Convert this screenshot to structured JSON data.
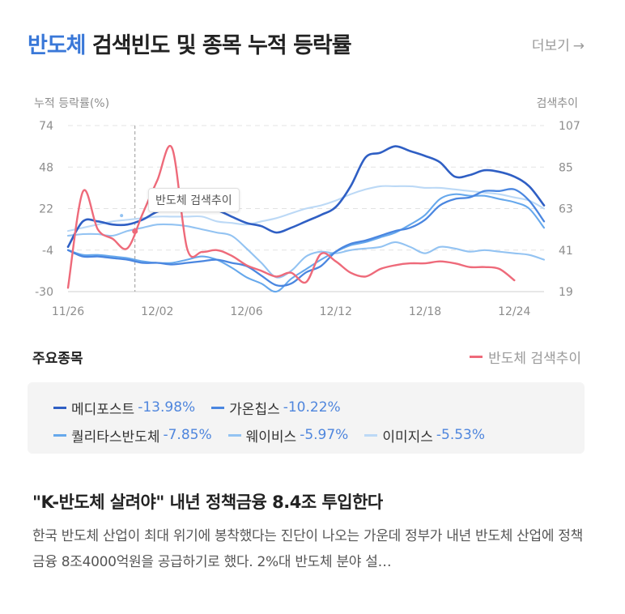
{
  "header": {
    "keyword": "반도체",
    "title_rest": " 검색빈도 및 종목 누적 등락률",
    "more_label": "더보기",
    "more_arrow": "→"
  },
  "tooltip": {
    "label": "반도체 검색추이"
  },
  "section": {
    "title": "주요종목",
    "search_legend": "반도체 검색추이"
  },
  "stocks": [
    {
      "name": "메디포스트",
      "change": "-13.98%",
      "color": "#2f5fc4"
    },
    {
      "name": "가온칩스",
      "change": "-10.22%",
      "color": "#4a86e0"
    },
    {
      "name": "퀄리타스반도체",
      "change": "-7.85%",
      "color": "#66a8ec"
    },
    {
      "name": "웨이비스",
      "change": "-5.97%",
      "color": "#93c3f2"
    },
    {
      "name": "이미지스",
      "change": "-5.53%",
      "color": "#bcd9f6"
    }
  ],
  "news": {
    "title": "\"K-반도체 살려야\" 내년 정책금융 8.4조 투입한다",
    "body": "한국 반도체 산업이 최대 위기에 봉착했다는 진단이 나오는 가운데 정부가 내년 반도체 산업에 정책금융 8조4000억원을 공급하기로 했다. 2%대 반도체 분야 설…"
  },
  "chart_data": {
    "type": "line",
    "y_left_label": "누적 등락률(%)",
    "y_right_label": "검색추이",
    "y_left_ticks": [
      74,
      48,
      22,
      -4,
      -30
    ],
    "y_right_ticks": [
      107,
      85,
      63,
      41,
      19
    ],
    "y_left_range": [
      -30,
      74
    ],
    "y_right_range": [
      19,
      107
    ],
    "x_tick_labels": [
      "11/26",
      "12/02",
      "12/06",
      "12/12",
      "12/18",
      "12/24"
    ],
    "x_tick_index": [
      0,
      6,
      12,
      18,
      24,
      30
    ],
    "grid": "horizontal-dashed",
    "highlight_index": 4.5,
    "series": [
      {
        "name": "메디포스트",
        "color": "#2f5fc4",
        "width": 2.6,
        "values": [
          -2,
          14,
          14,
          12,
          12,
          15,
          20,
          22,
          22,
          22,
          21,
          17,
          13,
          11,
          7,
          10,
          14,
          18,
          23,
          36,
          54,
          57,
          61,
          58,
          55,
          51,
          42,
          43,
          46,
          45,
          42,
          36,
          24
        ]
      },
      {
        "name": "가온칩스",
        "color": "#4a86e0",
        "width": 2.3,
        "values": [
          -4,
          -8,
          -8,
          -9,
          -10,
          -12,
          -12,
          -13,
          -12,
          -11,
          -10,
          -12,
          -14,
          -20,
          -26,
          -25,
          -18,
          -14,
          -5,
          0,
          2,
          5,
          8,
          10,
          15,
          24,
          28,
          29,
          33,
          33,
          34,
          27,
          14
        ]
      },
      {
        "name": "퀄리타스반도체",
        "color": "#66a8ec",
        "width": 2.1,
        "values": [
          -4,
          -7,
          -7,
          -8,
          -9,
          -11,
          -12,
          -12,
          -10,
          -8,
          -10,
          -15,
          -21,
          -25,
          -30,
          -22,
          -16,
          -10,
          -5,
          -1,
          1,
          4,
          7,
          12,
          18,
          28,
          31,
          30,
          30,
          28,
          26,
          22,
          10
        ]
      },
      {
        "name": "웨이비스",
        "color": "#93c3f2",
        "width": 2.1,
        "values": [
          5,
          6,
          6,
          5,
          8,
          10,
          12,
          12,
          11,
          9,
          7,
          5,
          -3,
          -12,
          -21,
          -17,
          -8,
          -5,
          -6,
          -4,
          -3,
          -2,
          1,
          -2,
          -6,
          -2,
          -3,
          -5,
          -4,
          -5,
          -6,
          -7,
          -10
        ]
      },
      {
        "name": "이미지스",
        "color": "#bcd9f6",
        "width": 2.1,
        "values": [
          8,
          10,
          12,
          14,
          15,
          16,
          17,
          17,
          17,
          17,
          14,
          13,
          12,
          14,
          16,
          19,
          22,
          24,
          27,
          31,
          34,
          36,
          36,
          36,
          35,
          35,
          34,
          33,
          32,
          31,
          29,
          27,
          22
        ]
      },
      {
        "name": "반도체 검색추이",
        "color": "#ee6a7a",
        "width": 2.4,
        "axis": "right",
        "values": [
          21,
          72,
          52,
          47,
          42,
          60,
          78,
          95,
          42,
          40,
          41,
          38,
          33,
          30,
          27,
          29,
          24,
          39,
          35,
          29,
          27,
          31,
          33,
          34,
          34,
          35,
          34,
          32,
          32,
          31,
          25
        ]
      }
    ]
  }
}
